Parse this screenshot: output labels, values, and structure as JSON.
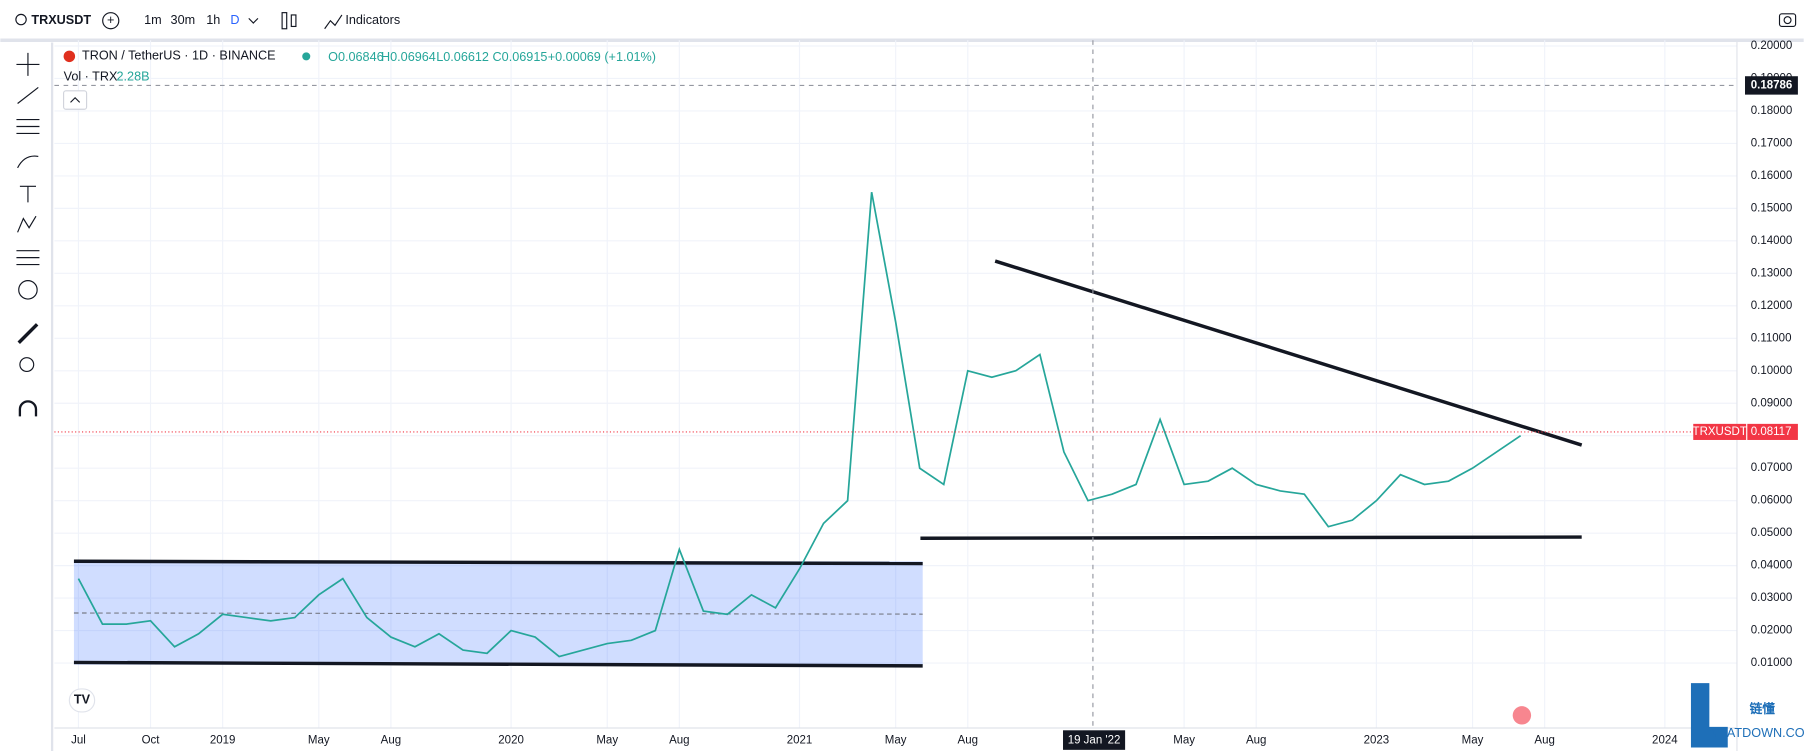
{
  "toolbar": {
    "symbol": "TRXUSDT",
    "intervals": [
      "1m",
      "30m",
      "1h",
      "D"
    ],
    "indicators": "Indicators"
  },
  "legend": {
    "name": "TRON / TetherUS · 1D · BINANCE",
    "open": "O0.06846",
    "high": "H0.06964",
    "low": "L0.06612",
    "close": "C0.06915",
    "change": "+0.00069 (+1.01%)",
    "volume_label": "Vol · TRX",
    "volume": "2.28B"
  },
  "chart_data": {
    "type": "line",
    "x": [
      "2018-07",
      "2018-08",
      "2018-09",
      "2018-10",
      "2018-11",
      "2018-12",
      "2019-01",
      "2019-02",
      "2019-03",
      "2019-04",
      "2019-05",
      "2019-06",
      "2019-07",
      "2019-08",
      "2019-09",
      "2019-10",
      "2019-11",
      "2019-12",
      "2020-01",
      "2020-02",
      "2020-03",
      "2020-04",
      "2020-05",
      "2020-06",
      "2020-07",
      "2020-08",
      "2020-09",
      "2020-10",
      "2020-11",
      "2020-12",
      "2021-01",
      "2021-02",
      "2021-03",
      "2021-04",
      "2021-05",
      "2021-06",
      "2021-07",
      "2021-08",
      "2021-09",
      "2021-10",
      "2021-11",
      "2021-12",
      "2022-01",
      "2022-02",
      "2022-03",
      "2022-04",
      "2022-05",
      "2022-06",
      "2022-07",
      "2022-08",
      "2022-09",
      "2022-10",
      "2022-11",
      "2022-12",
      "2023-01",
      "2023-02",
      "2023-03",
      "2023-04",
      "2023-05",
      "2023-06",
      "2023-07"
    ],
    "series": [
      {
        "name": "TRXUSDT",
        "color": "#26a69a",
        "values": [
          0.036,
          0.022,
          0.022,
          0.023,
          0.015,
          0.019,
          0.025,
          0.024,
          0.023,
          0.024,
          0.031,
          0.036,
          0.024,
          0.018,
          0.015,
          0.019,
          0.014,
          0.013,
          0.02,
          0.018,
          0.012,
          0.014,
          0.016,
          0.017,
          0.02,
          0.045,
          0.026,
          0.025,
          0.031,
          0.027,
          0.039,
          0.053,
          0.06,
          0.155,
          0.115,
          0.07,
          0.065,
          0.1,
          0.098,
          0.1,
          0.105,
          0.075,
          0.06,
          0.062,
          0.065,
          0.085,
          0.065,
          0.066,
          0.07,
          0.065,
          0.063,
          0.062,
          0.052,
          0.054,
          0.06,
          0.068,
          0.065,
          0.066,
          0.07,
          0.075,
          0.08
        ]
      }
    ],
    "xlim": [
      "2018-06",
      "2024-04"
    ],
    "xticks": [
      {
        "value": "2018-07",
        "label": "Jul"
      },
      {
        "value": "2018-10",
        "label": "Oct"
      },
      {
        "value": "2019-01",
        "label": "2019"
      },
      {
        "value": "2019-05",
        "label": "May"
      },
      {
        "value": "2019-08",
        "label": "Aug"
      },
      {
        "value": "2020-01",
        "label": "2020"
      },
      {
        "value": "2020-05",
        "label": "May"
      },
      {
        "value": "2020-08",
        "label": "Aug"
      },
      {
        "value": "2021-01",
        "label": "2021"
      },
      {
        "value": "2021-05",
        "label": "May"
      },
      {
        "value": "2021-08",
        "label": "Aug"
      },
      {
        "value": "2022-05",
        "label": "May"
      },
      {
        "value": "2022-08",
        "label": "Aug"
      },
      {
        "value": "2023-01",
        "label": "2023"
      },
      {
        "value": "2023-05",
        "label": "May"
      },
      {
        "value": "2023-08",
        "label": "Aug"
      },
      {
        "value": "2024-01",
        "label": "2024"
      }
    ],
    "ylim": [
      -0.01,
      0.2
    ],
    "yticks": [
      {
        "value": 0.01,
        "label": "0.01000"
      },
      {
        "value": 0.02,
        "label": "0.02000"
      },
      {
        "value": 0.03,
        "label": "0.03000"
      },
      {
        "value": 0.04,
        "label": "0.04000"
      },
      {
        "value": 0.05,
        "label": "0.05000"
      },
      {
        "value": 0.06,
        "label": "0.06000"
      },
      {
        "value": 0.07,
        "label": "0.07000"
      },
      {
        "value": 0.08,
        "label": "0.08000"
      },
      {
        "value": 0.09,
        "label": "0.09000"
      },
      {
        "value": 0.1,
        "label": "0.10000"
      },
      {
        "value": 0.11,
        "label": "0.11000"
      },
      {
        "value": 0.12,
        "label": "0.12000"
      },
      {
        "value": 0.13,
        "label": "0.13000"
      },
      {
        "value": 0.14,
        "label": "0.14000"
      },
      {
        "value": 0.15,
        "label": "0.15000"
      },
      {
        "value": 0.16,
        "label": "0.16000"
      },
      {
        "value": 0.17,
        "label": "0.17000"
      },
      {
        "value": 0.18,
        "label": "0.18000"
      },
      {
        "value": 0.19,
        "label": "0.19000"
      },
      {
        "value": 0.2,
        "label": "0.20000"
      }
    ],
    "grid": true,
    "last_price": {
      "symbol": "TRXUSDT",
      "value": 0.08117,
      "color": "#f23645"
    },
    "crosshair": {
      "price": 0.18786,
      "date": "19 Jan '22"
    }
  },
  "watermark": {
    "brand": "链懂",
    "site": "NEATDOWN.COM"
  }
}
